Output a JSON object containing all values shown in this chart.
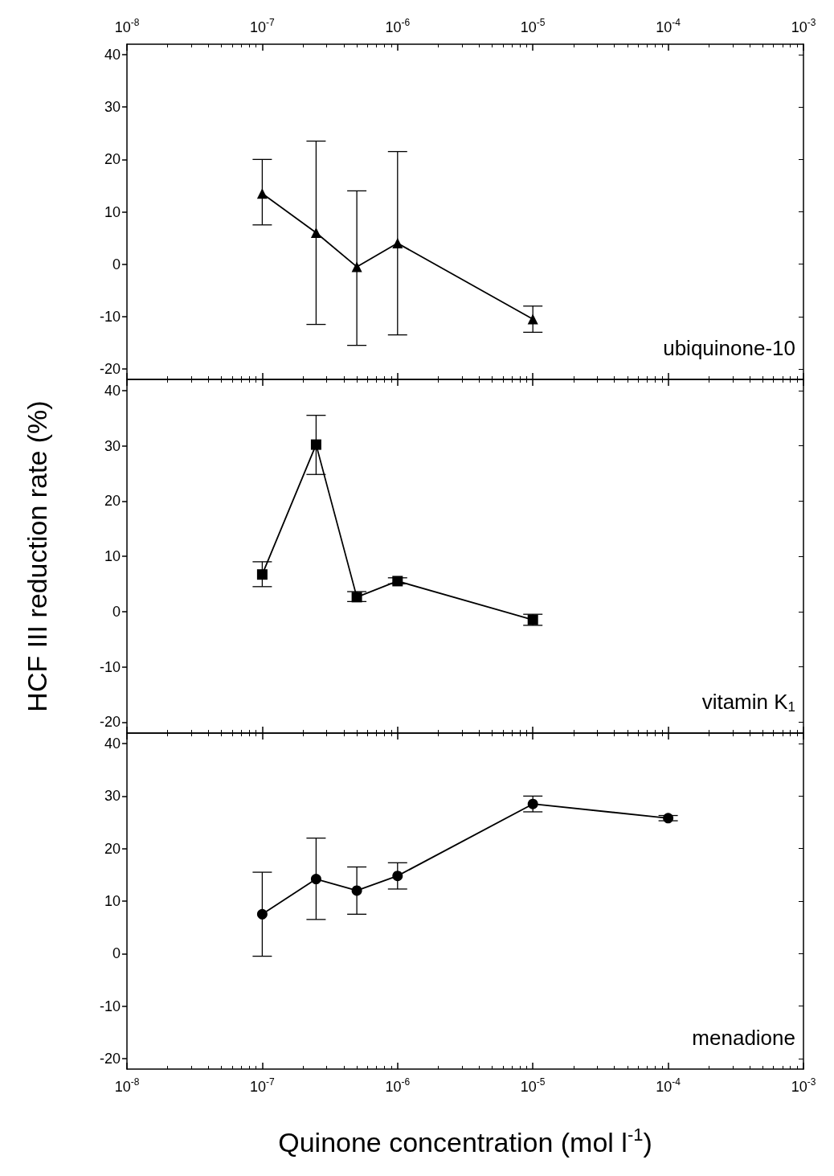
{
  "chart_data": [
    {
      "type": "line",
      "x": [
        1e-07,
        2.5e-07,
        5e-07,
        1e-06,
        1e-05
      ],
      "values": [
        13.5,
        6,
        -0.5,
        4,
        -10.5
      ],
      "errors": [
        [
          7.5,
          20
        ],
        [
          -11.5,
          23.5
        ],
        [
          -15.5,
          14
        ],
        [
          -13.5,
          21.5
        ],
        [
          -13,
          -8
        ]
      ],
      "color": "#000000",
      "marker": "triangle",
      "line_style": "solid",
      "annotations": [
        "ubiquinone-10"
      ],
      "log": "x",
      "xlim": [
        1e-08,
        0.001
      ],
      "xticks": [
        {
          "value": 1e-08,
          "label": "10$^{-8}$"
        },
        {
          "value": 1e-07,
          "label": "10$^{-7}$"
        },
        {
          "value": 1e-06,
          "label": "10$^{-6}$"
        },
        {
          "value": 1e-05,
          "label": "10$^{-5}$"
        },
        {
          "value": 0.0001,
          "label": "10$^{-4}$"
        },
        {
          "value": 0.001,
          "label": "10$^{-3}$"
        }
      ],
      "ylim": [
        -22,
        42
      ],
      "yticks": [
        -20,
        -10,
        0,
        10,
        20,
        30,
        40
      ],
      "grid": false
    },
    {
      "type": "line",
      "x": [
        1e-07,
        2.5e-07,
        5e-07,
        1e-06,
        1e-05
      ],
      "values": [
        6.7,
        30.2,
        2.6,
        5.5,
        -1.5
      ],
      "errors": [
        [
          4.5,
          9
        ],
        [
          24.8,
          35.5
        ],
        [
          1.8,
          3.6
        ],
        [
          5,
          6.1
        ],
        [
          -2.5,
          -0.5
        ]
      ],
      "color": "#000000",
      "marker": "square",
      "line_style": "solid",
      "annotations": [
        "vitamin K$_{1}$"
      ],
      "ylabel": "HCF III reduction rate (%)",
      "log": "x",
      "xlim": [
        1e-08,
        0.001
      ],
      "xticks": [
        {
          "value": 1e-08,
          "label": null
        },
        {
          "value": 1e-07,
          "label": null
        },
        {
          "value": 1e-06,
          "label": null
        },
        {
          "value": 1e-05,
          "label": null
        },
        {
          "value": 0.0001,
          "label": null
        },
        {
          "value": 0.001,
          "label": null
        }
      ],
      "ylim": [
        -22,
        42
      ],
      "yticks": [
        -20,
        -10,
        0,
        10,
        20,
        30,
        40
      ],
      "grid": false,
      "tick_labels": "y"
    },
    {
      "type": "line",
      "x": [
        1e-07,
        2.5e-07,
        5e-07,
        1e-06,
        1e-05,
        0.0001
      ],
      "values": [
        7.5,
        14.2,
        12,
        14.8,
        28.5,
        25.8
      ],
      "errors": [
        [
          -0.5,
          15.5
        ],
        [
          6.5,
          22
        ],
        [
          7.5,
          16.5
        ],
        [
          12.3,
          17.3
        ],
        [
          27,
          30
        ],
        [
          25.3,
          26.3
        ]
      ],
      "color": "#000000",
      "marker": "circle",
      "line_style": "solid",
      "annotations": [
        "menadione"
      ],
      "xlabel": "Quinone concentration (mol l$^{-1}$)",
      "log": "x",
      "xlim": [
        1e-08,
        0.001
      ],
      "xticks": [
        {
          "value": 1e-08,
          "label": "10$^{-8}$"
        },
        {
          "value": 1e-07,
          "label": "10$^{-7}$"
        },
        {
          "value": 1e-06,
          "label": "10$^{-6}$"
        },
        {
          "value": 1e-05,
          "label": "10$^{-5}$"
        },
        {
          "value": 0.0001,
          "label": "10$^{-4}$"
        },
        {
          "value": 0.001,
          "label": "10$^{-3}$"
        }
      ],
      "ylim": [
        -22,
        42
      ],
      "yticks": [
        -20,
        -10,
        0,
        10,
        20,
        30,
        40
      ],
      "grid": false
    }
  ]
}
